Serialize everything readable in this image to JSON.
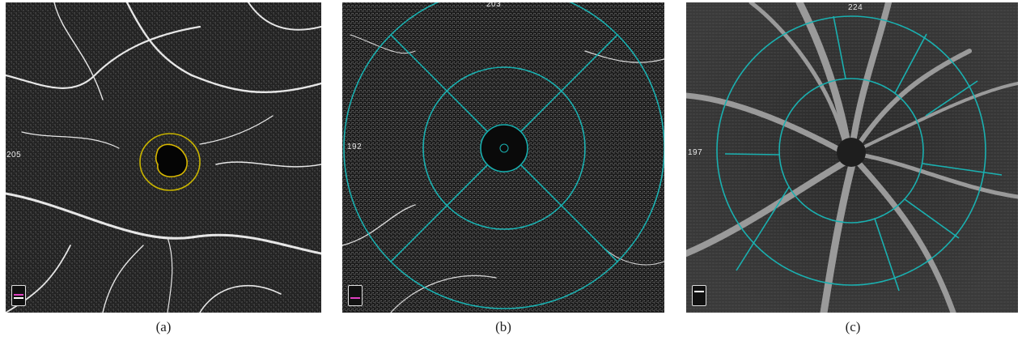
{
  "panels": [
    {
      "id": "a",
      "caption": "(a)",
      "left_value": "205",
      "top_value": "",
      "badge_line_color": "#e040c0",
      "overlay_color": "#c8b400"
    },
    {
      "id": "b",
      "caption": "(b)",
      "left_value": "192",
      "top_value": "203",
      "badge_line_color": "#e040c0",
      "overlay_color": "#1ab0b0"
    },
    {
      "id": "c",
      "caption": "(c)",
      "left_value": "197",
      "top_value": "224",
      "badge_line_color": "#ffffff",
      "overlay_color": "#1ab0b0"
    }
  ]
}
